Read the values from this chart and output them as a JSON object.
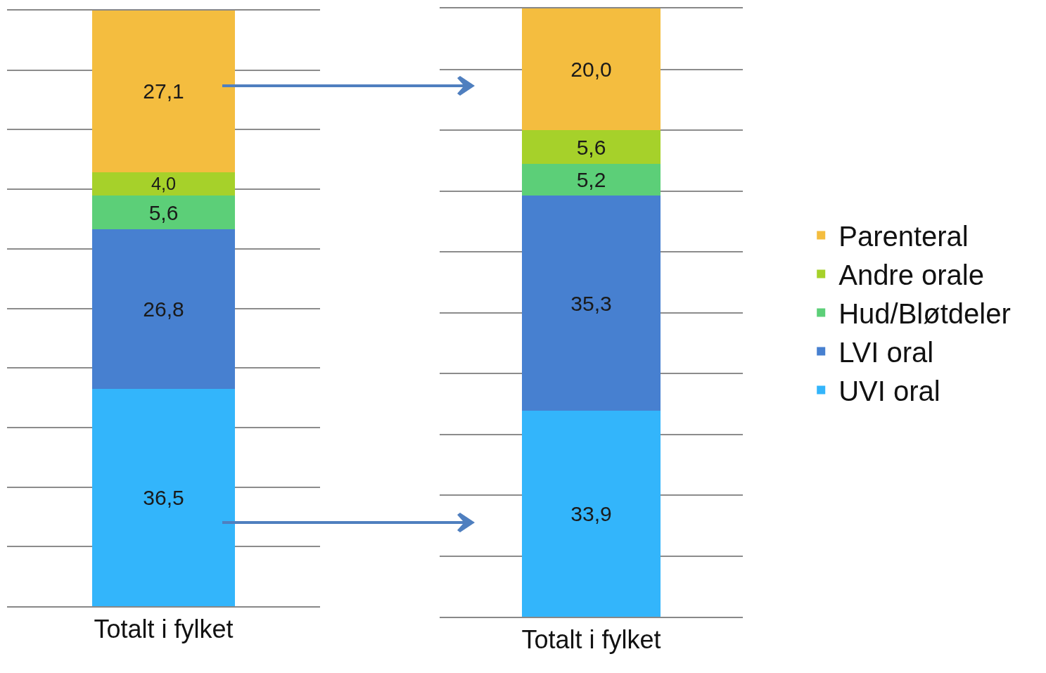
{
  "chart_data": [
    {
      "type": "bar",
      "stacked": true,
      "categories": [
        "Totalt i fylket"
      ],
      "ylim": [
        0,
        100
      ],
      "yticks": [
        {
          "value": 0,
          "label": null
        },
        {
          "value": 10,
          "label": null
        },
        {
          "value": 20,
          "label": null
        },
        {
          "value": 30,
          "label": null
        },
        {
          "value": 40,
          "label": null
        },
        {
          "value": 50,
          "label": null
        },
        {
          "value": 60,
          "label": null
        },
        {
          "value": 70,
          "label": null
        },
        {
          "value": 80,
          "label": null
        },
        {
          "value": 90,
          "label": null
        }
      ],
      "grid": "y",
      "tick_labels": "x",
      "legend": false,
      "series": [
        {
          "color": "#33b5fb",
          "values": [
            36.5
          ],
          "value_labels": [
            "36,5"
          ]
        },
        {
          "color": "#4780d0",
          "values": [
            26.8
          ],
          "value_labels": [
            "26,8"
          ]
        },
        {
          "color": "#5ccf78",
          "values": [
            5.6
          ],
          "value_labels": [
            "5,6"
          ]
        },
        {
          "color": "#a6d12a",
          "values": [
            4.0
          ],
          "value_labels": [
            "4,0"
          ]
        },
        {
          "color": "#f4bd3f",
          "values": [
            27.1
          ],
          "value_labels": [
            "27,1"
          ]
        }
      ]
    },
    {
      "type": "bar",
      "stacked": true,
      "categories": [
        "Totalt i fylket"
      ],
      "ylim": [
        0,
        100
      ],
      "yticks": [
        {
          "value": 0,
          "label": null
        },
        {
          "value": 10,
          "label": null
        },
        {
          "value": 20,
          "label": null
        },
        {
          "value": 30,
          "label": null
        },
        {
          "value": 40,
          "label": null
        },
        {
          "value": 50,
          "label": null
        },
        {
          "value": 60,
          "label": null
        },
        {
          "value": 70,
          "label": null
        },
        {
          "value": 80,
          "label": null
        },
        {
          "value": 90,
          "label": null
        }
      ],
      "grid": "y",
      "tick_labels": "x",
      "legend": "right",
      "series": [
        {
          "name": "UVI oral",
          "color": "#33b5fb",
          "values": [
            33.9
          ],
          "value_labels": [
            "33,9"
          ]
        },
        {
          "name": "LVI oral",
          "color": "#4780d0",
          "values": [
            35.3
          ],
          "value_labels": [
            "35,3"
          ]
        },
        {
          "name": "Hud/Bløtdeler",
          "color": "#5ccf78",
          "values": [
            5.2
          ],
          "value_labels": [
            "5,2"
          ]
        },
        {
          "name": "Andre orale",
          "color": "#a6d12a",
          "values": [
            5.6
          ],
          "value_labels": [
            "5,6"
          ]
        },
        {
          "name": "Parenteral",
          "color": "#f4bd3f",
          "values": [
            20.0
          ],
          "value_labels": [
            "20,0"
          ]
        }
      ]
    }
  ]
}
